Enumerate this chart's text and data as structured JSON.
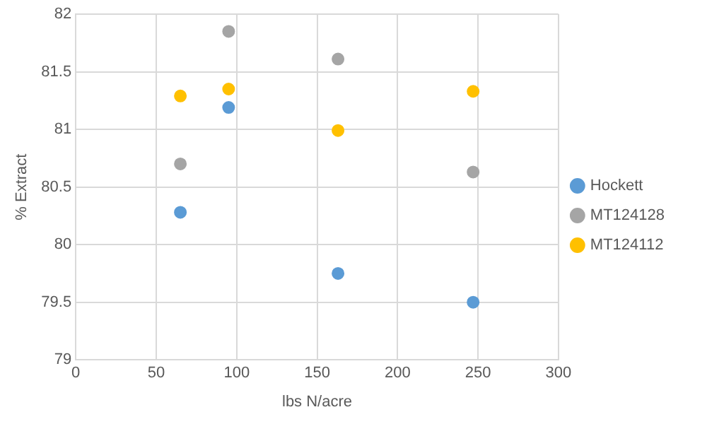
{
  "chart_data": {
    "type": "scatter",
    "xlabel": "lbs N/acre",
    "ylabel": "% Extract",
    "xlim": [
      0,
      300
    ],
    "xticks": [
      0,
      50,
      100,
      150,
      200,
      250,
      300
    ],
    "ylim": [
      79,
      82
    ],
    "yticks": [
      79,
      79.5,
      80,
      80.5,
      81,
      81.5,
      82
    ],
    "grid": true,
    "legend": "right",
    "marker": "circle",
    "series": [
      {
        "name": "Hockett",
        "color": "#5b9bd5",
        "x": [
          65,
          95,
          163,
          247
        ],
        "values": [
          80.28,
          81.19,
          79.75,
          79.5
        ]
      },
      {
        "name": "MT124128",
        "color": "#a5a5a5",
        "x": [
          65,
          95,
          163,
          247
        ],
        "values": [
          80.7,
          81.85,
          81.61,
          80.63
        ]
      },
      {
        "name": "MT124112",
        "color": "#ffc000",
        "x": [
          65,
          95,
          163,
          247
        ],
        "values": [
          81.29,
          81.35,
          80.99,
          81.33
        ]
      }
    ]
  }
}
